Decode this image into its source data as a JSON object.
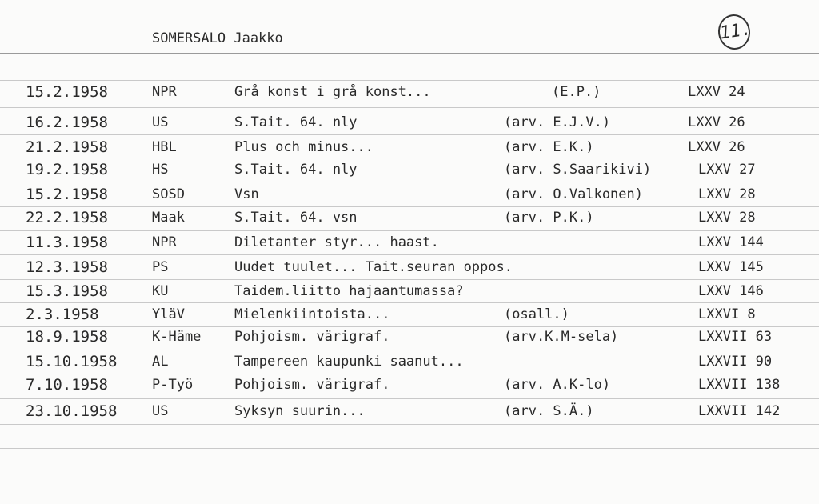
{
  "header": {
    "name": "SOMERSALO Jaakko",
    "card_number": "11."
  },
  "rows": [
    {
      "date": "15.2.1958",
      "source": "NPR",
      "title": "Grå konst i grå konst...",
      "reviewer": "(E.P.)",
      "ref": "LXXV 24"
    },
    {
      "date": "16.2.1958",
      "source": "US",
      "title": "S.Tait. 64. nly",
      "reviewer": "(arv. E.J.V.)",
      "ref": "LXXV 26"
    },
    {
      "date": "21.2.1958",
      "source": "HBL",
      "title": "Plus och minus...",
      "reviewer": "(arv. E.K.)",
      "ref": "LXXV 26"
    },
    {
      "date": "19.2.1958",
      "source": "HS",
      "title": "S.Tait. 64. nly",
      "reviewer": "(arv. S.Saarikivi)",
      "ref": "LXXV 27"
    },
    {
      "date": "15.2.1958",
      "source": "SOSD",
      "title": "Vsn",
      "reviewer": "(arv. O.Valkonen)",
      "ref": "LXXV 28"
    },
    {
      "date": "22.2.1958",
      "source": "Maak",
      "title": "S.Tait. 64. vsn",
      "reviewer": "(arv. P.K.)",
      "ref": "LXXV 28"
    },
    {
      "date": "11.3.1958",
      "source": "NPR",
      "title": "Diletanter styr... haast.",
      "reviewer": "",
      "ref": "LXXV 144"
    },
    {
      "date": "12.3.1958",
      "source": "PS",
      "title": "Uudet tuulet... Tait.seuran oppos.",
      "reviewer": "",
      "ref": "LXXV 145"
    },
    {
      "date": "15.3.1958",
      "source": "KU",
      "title": "Taidem.liitto hajaantumassa?",
      "reviewer": "",
      "ref": "LXXV 146"
    },
    {
      "date": "2.3.1958",
      "source": "YläV",
      "title": "Mielenkiintoista...",
      "reviewer": "(osall.)",
      "ref": "LXXVI 8"
    },
    {
      "date": "18.9.1958",
      "source": "K-Häme",
      "title": "Pohjoism. värigraf.",
      "reviewer": "(arv.K.M-sela)",
      "ref": "LXXVII 63"
    },
    {
      "date": "15.10.1958",
      "source": "AL",
      "title": "Tampereen kaupunki saanut...",
      "reviewer": "",
      "ref": "LXXVII 90"
    },
    {
      "date": "7.10.1958",
      "source": "P-Työ",
      "title": "Pohjoism. värigraf.",
      "reviewer": "(arv. A.K-lo)",
      "ref": "LXXVII 138"
    },
    {
      "date": "23.10.1958",
      "source": "US",
      "title": "Syksyn suurin...",
      "reviewer": "(arv. S.Ä.)",
      "ref": "LXXVII 142"
    }
  ]
}
